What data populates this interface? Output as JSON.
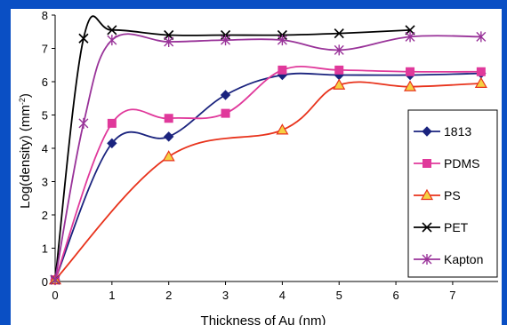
{
  "chart_data": {
    "type": "line",
    "xlabel": "Thickness of Au (nm)",
    "ylabel": "Log(density) (mm",
    "ylabel_superscript": "-2",
    "ylabel_close": ")",
    "xlim": [
      0,
      7.8
    ],
    "ylim": [
      0,
      8
    ],
    "xticks": [
      0,
      1,
      2,
      3,
      4,
      5,
      6,
      7
    ],
    "yticks": [
      0,
      1,
      2,
      3,
      4,
      5,
      6,
      7,
      8
    ],
    "grid": false,
    "legend_position": "right",
    "series": [
      {
        "name": "1813",
        "color": "#1a237e",
        "marker": "diamond",
        "x": [
          0,
          1,
          2,
          3,
          4,
          5,
          6.25,
          7.5
        ],
        "y": [
          0.05,
          4.15,
          4.35,
          5.6,
          6.2,
          6.2,
          6.2,
          6.25
        ]
      },
      {
        "name": "PDMS",
        "color": "#e0399b",
        "marker": "square",
        "x": [
          0,
          1,
          2,
          3,
          4,
          5,
          6.25,
          7.5
        ],
        "y": [
          0.05,
          4.75,
          4.9,
          5.05,
          6.35,
          6.35,
          6.3,
          6.3
        ]
      },
      {
        "name": "PS",
        "color": "#e8331c",
        "marker": "triangle",
        "x": [
          0,
          2,
          4,
          5,
          6.25,
          7.5
        ],
        "y": [
          0.05,
          3.75,
          4.55,
          5.9,
          5.85,
          5.95
        ]
      },
      {
        "name": "PET",
        "color": "#000000",
        "marker": "x",
        "x": [
          0,
          0.5,
          1,
          2,
          3,
          4,
          5,
          6.25
        ],
        "y": [
          0.05,
          7.3,
          7.55,
          7.4,
          7.4,
          7.4,
          7.45,
          7.55
        ]
      },
      {
        "name": "Kapton",
        "color": "#993399",
        "marker": "star",
        "x": [
          0,
          0.5,
          1,
          2,
          3,
          4,
          5,
          6.25,
          7.5
        ],
        "y": [
          0.05,
          4.75,
          7.25,
          7.2,
          7.25,
          7.25,
          6.95,
          7.35,
          7.35
        ]
      }
    ]
  }
}
